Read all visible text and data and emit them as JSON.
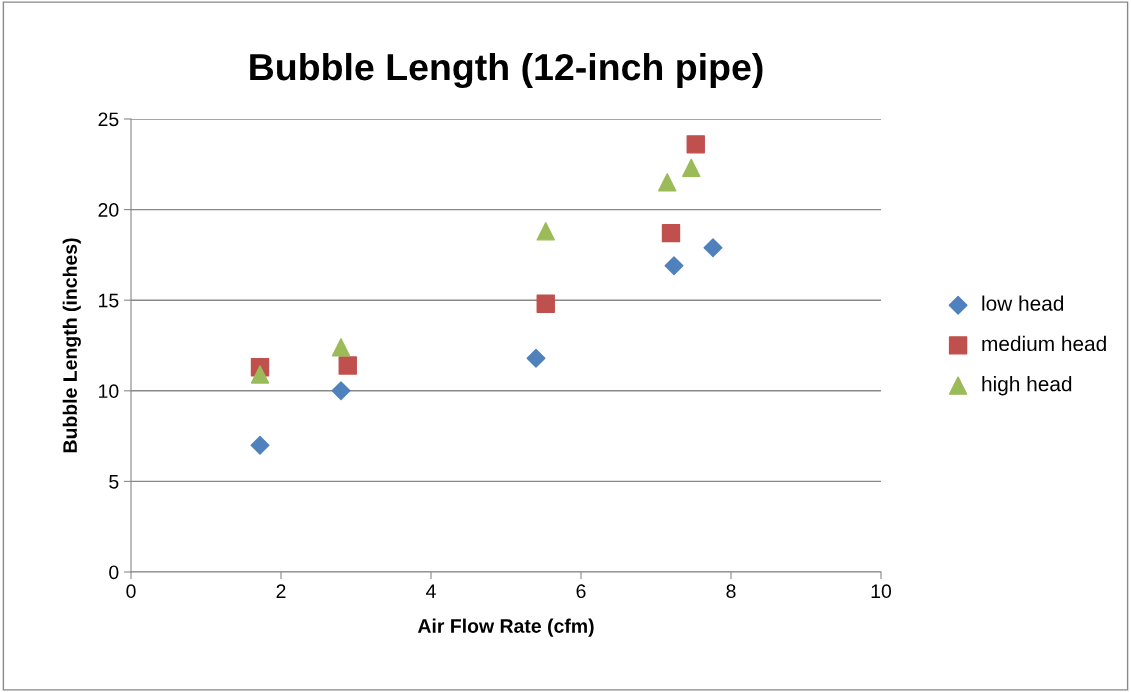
{
  "chart_data": {
    "type": "scatter",
    "title": "Bubble Length (12-inch pipe)",
    "xlabel": "Air Flow Rate (cfm)",
    "ylabel": "Bubble Length (inches)",
    "xlim": [
      0,
      10
    ],
    "xticks": [
      0,
      2,
      4,
      6,
      8,
      10
    ],
    "ylim": [
      0,
      25
    ],
    "yticks": [
      0,
      5,
      10,
      15,
      20,
      25
    ],
    "grid": "y",
    "legend": "right",
    "series": [
      {
        "name": "low head",
        "color": "#4f81bd",
        "marker": "diamond",
        "x": [
          1.72,
          2.8,
          5.4,
          7.24,
          7.76
        ],
        "values": [
          7.0,
          10.0,
          11.8,
          16.9,
          17.9
        ]
      },
      {
        "name": "medium head",
        "color": "#c0504d",
        "marker": "square",
        "x": [
          1.72,
          2.89,
          5.53,
          7.2,
          7.53
        ],
        "values": [
          11.3,
          11.4,
          14.8,
          18.7,
          23.6
        ]
      },
      {
        "name": "high head",
        "color": "#9bbb59",
        "marker": "triangle",
        "x": [
          1.72,
          2.8,
          5.53,
          7.15,
          7.47
        ],
        "values": [
          10.9,
          12.4,
          18.8,
          21.5,
          22.3
        ]
      }
    ]
  }
}
